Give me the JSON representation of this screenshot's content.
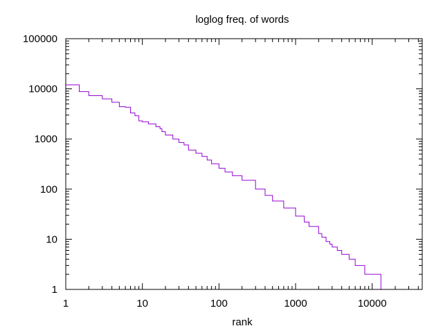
{
  "chart_data": {
    "type": "line",
    "title": "loglog freq. of words",
    "xlabel": "rank",
    "ylabel": "",
    "x_scale": "log",
    "y_scale": "log",
    "xlim": [
      1,
      45000
    ],
    "ylim": [
      1,
      100000
    ],
    "grid": false,
    "legend": "none",
    "x_ticks": [
      "1",
      "10",
      "100",
      "1000",
      "10000"
    ],
    "y_ticks": [
      "1",
      "10",
      "100",
      "1000",
      "10000",
      "100000"
    ],
    "series": [
      {
        "color": "#9400d3",
        "step": true,
        "points": [
          [
            1,
            12000
          ],
          [
            1.5,
            8800
          ],
          [
            2,
            7300
          ],
          [
            3,
            6300
          ],
          [
            4,
            5400
          ],
          [
            5,
            4400
          ],
          [
            6,
            4300
          ],
          [
            7,
            3300
          ],
          [
            8,
            2900
          ],
          [
            9,
            2300
          ],
          [
            10,
            2200
          ],
          [
            12,
            2000
          ],
          [
            15,
            1750
          ],
          [
            17,
            1600
          ],
          [
            18,
            1400
          ],
          [
            20,
            1200
          ],
          [
            25,
            1000
          ],
          [
            30,
            850
          ],
          [
            35,
            760
          ],
          [
            40,
            600
          ],
          [
            50,
            520
          ],
          [
            60,
            450
          ],
          [
            70,
            380
          ],
          [
            80,
            320
          ],
          [
            100,
            260
          ],
          [
            120,
            220
          ],
          [
            150,
            185
          ],
          [
            200,
            150
          ],
          [
            300,
            100
          ],
          [
            400,
            75
          ],
          [
            500,
            58
          ],
          [
            700,
            42
          ],
          [
            1000,
            29
          ],
          [
            1300,
            22
          ],
          [
            1500,
            18
          ],
          [
            2000,
            13
          ],
          [
            2200,
            11
          ],
          [
            2500,
            9
          ],
          [
            2800,
            8
          ],
          [
            3000,
            7
          ],
          [
            3500,
            6
          ],
          [
            4000,
            5
          ],
          [
            5000,
            4
          ],
          [
            6000,
            3
          ],
          [
            8000,
            2
          ],
          [
            13000,
            1
          ]
        ]
      }
    ]
  }
}
